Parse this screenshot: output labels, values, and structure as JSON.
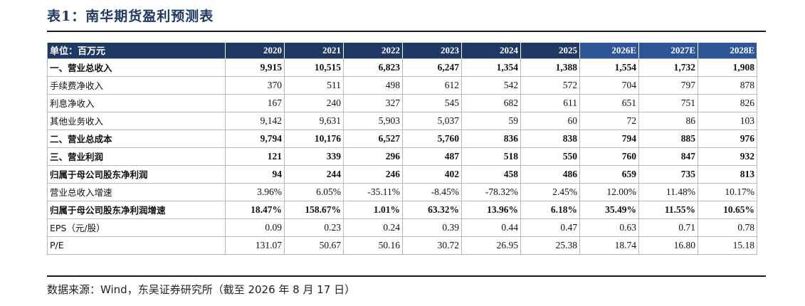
{
  "title": "表1：南华期货盈利预测表",
  "header": {
    "unit_label": "单位：百万元",
    "years": [
      {
        "label": "2020",
        "estimate": false
      },
      {
        "label": "2021",
        "estimate": false
      },
      {
        "label": "2022",
        "estimate": false
      },
      {
        "label": "2023",
        "estimate": false
      },
      {
        "label": "2024",
        "estimate": false
      },
      {
        "label": "2025",
        "estimate": false
      },
      {
        "label": "2026E",
        "estimate": true
      },
      {
        "label": "2027E",
        "estimate": true
      },
      {
        "label": "2028E",
        "estimate": true
      }
    ]
  },
  "rows": [
    {
      "label": "一、营业总收入",
      "bold": true,
      "values": [
        "9,915",
        "10,515",
        "6,823",
        "6,247",
        "1,354",
        "1,388",
        "1,554",
        "1,732",
        "1,908"
      ]
    },
    {
      "label": "手续费净收入",
      "bold": false,
      "values": [
        "370",
        "511",
        "498",
        "612",
        "542",
        "572",
        "704",
        "797",
        "878"
      ]
    },
    {
      "label": "利息净收入",
      "bold": false,
      "values": [
        "167",
        "240",
        "327",
        "545",
        "682",
        "611",
        "651",
        "751",
        "826"
      ]
    },
    {
      "label": "其他业务收入",
      "bold": false,
      "values": [
        "9,142",
        "9,631",
        "5,903",
        "5,037",
        "59",
        "60",
        "72",
        "86",
        "103"
      ]
    },
    {
      "label": "二、营业总成本",
      "bold": true,
      "values": [
        "9,794",
        "10,176",
        "6,527",
        "5,760",
        "836",
        "838",
        "794",
        "885",
        "976"
      ]
    },
    {
      "label": "三、营业利润",
      "bold": true,
      "values": [
        "121",
        "339",
        "296",
        "487",
        "518",
        "550",
        "760",
        "847",
        "932"
      ]
    },
    {
      "label": "归属于母公司股东净利润",
      "bold": true,
      "values": [
        "94",
        "244",
        "246",
        "402",
        "458",
        "486",
        "659",
        "735",
        "813"
      ]
    },
    {
      "label": "营业总收入增速",
      "bold": false,
      "values": [
        "3.96%",
        "6.05%",
        "-35.11%",
        "-8.45%",
        "-78.32%",
        "2.45%",
        "12.00%",
        "11.48%",
        "10.17%"
      ]
    },
    {
      "label": "归属于母公司股东净利润增速",
      "bold": true,
      "values": [
        "18.47%",
        "158.67%",
        "1.01%",
        "63.32%",
        "13.96%",
        "6.18%",
        "35.49%",
        "11.55%",
        "10.65%"
      ]
    },
    {
      "label": "EPS（元/股）",
      "bold": false,
      "values": [
        "0.09",
        "0.23",
        "0.24",
        "0.39",
        "0.44",
        "0.47",
        "0.63",
        "0.71",
        "0.78"
      ]
    },
    {
      "label": "P/E",
      "bold": false,
      "values": [
        "131.07",
        "50.67",
        "50.16",
        "30.72",
        "26.95",
        "25.38",
        "18.74",
        "16.80",
        "15.18"
      ]
    }
  ],
  "source": "数据来源：Wind，东吴证券研究所（截至 2026 年 8 月 17 日）",
  "colors": {
    "header_bg": "#1f3864",
    "estimate_header_bg": "#2e5597",
    "title": "#1f3864"
  }
}
